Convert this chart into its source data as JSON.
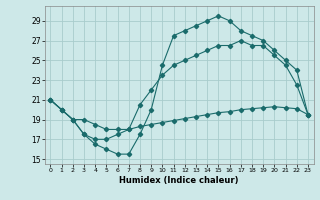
{
  "xlabel": "Humidex (Indice chaleur)",
  "background_color": "#cde8e8",
  "grid_color": "#a8cccc",
  "line_color": "#1a6b6b",
  "xlim": [
    -0.5,
    23.5
  ],
  "ylim": [
    14.5,
    30.5
  ],
  "xticks": [
    0,
    1,
    2,
    3,
    4,
    5,
    6,
    7,
    8,
    9,
    10,
    11,
    12,
    13,
    14,
    15,
    16,
    17,
    18,
    19,
    20,
    21,
    22,
    23
  ],
  "yticks": [
    15,
    17,
    19,
    21,
    23,
    25,
    27,
    29
  ],
  "line1_x": [
    0,
    1,
    2,
    3,
    4,
    5,
    6,
    7,
    8,
    9,
    10,
    11,
    12,
    13,
    14,
    15,
    16,
    17,
    18,
    19,
    20,
    21,
    22,
    23
  ],
  "line1_y": [
    21,
    20,
    19,
    19,
    18.5,
    18,
    18,
    18,
    18.3,
    18.5,
    18.7,
    18.9,
    19.1,
    19.3,
    19.5,
    19.7,
    19.8,
    20.0,
    20.1,
    20.2,
    20.3,
    20.2,
    20.1,
    19.5
  ],
  "line2_x": [
    0,
    1,
    2,
    3,
    4,
    5,
    6,
    7,
    8,
    9,
    10,
    11,
    12,
    13,
    14,
    15,
    16,
    17,
    18,
    19,
    20,
    21,
    22,
    23
  ],
  "line2_y": [
    21,
    20,
    19,
    17.5,
    17,
    17,
    17.5,
    18,
    20.5,
    22,
    23.5,
    24.5,
    25,
    25.5,
    26,
    26.5,
    26.5,
    27,
    26.5,
    26.5,
    25.5,
    24.5,
    22.5,
    19.5
  ],
  "line3_x": [
    0,
    1,
    2,
    3,
    4,
    5,
    6,
    7,
    8,
    9,
    10,
    11,
    12,
    13,
    14,
    15,
    16,
    17,
    18,
    19,
    20,
    21,
    22,
    23
  ],
  "line3_y": [
    21,
    20,
    19,
    17.5,
    16.5,
    16,
    15.5,
    15.5,
    17.5,
    20,
    24.5,
    27.5,
    28,
    28.5,
    29,
    29.5,
    29,
    28,
    27.5,
    27,
    26,
    25,
    24,
    19.5
  ]
}
